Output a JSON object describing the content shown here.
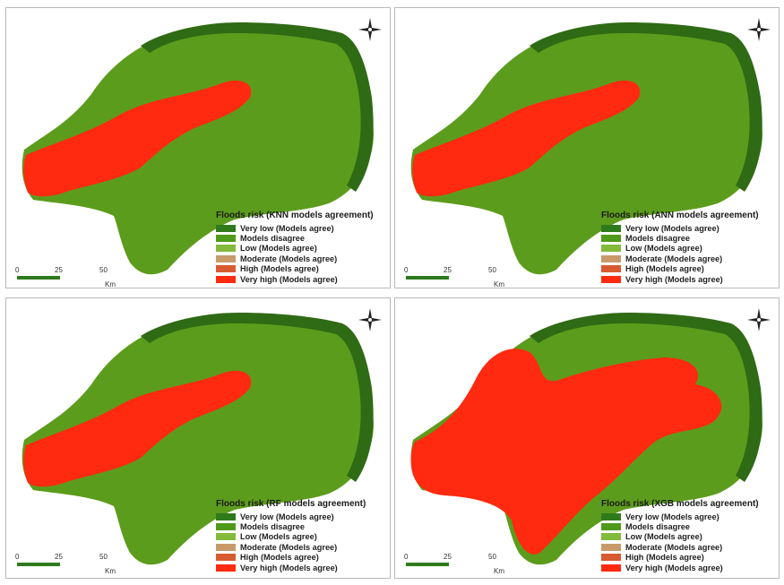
{
  "colors": {
    "very_low": "#2f7a1b",
    "models_disagree": "#4f9a1a",
    "low": "#83ba3b",
    "moderate": "#c89a6a",
    "high": "#d85a30",
    "very_high": "#ff2a0f",
    "basin": "#5c9c1c",
    "border": "#2f6a14"
  },
  "panels": [
    {
      "legend_title_prefix": "Floods risk (",
      "legend_title_model": "KNN",
      "legend_title_suffix": " models agreement)",
      "legend": [
        {
          "label": "Very low (Models agree)",
          "color": "#2f7a1b"
        },
        {
          "label": "Models disagree",
          "color": "#4f9a1a"
        },
        {
          "label": "Low (Models agree)",
          "color": "#83ba3b"
        },
        {
          "label": "Moderate (Models agree)",
          "color": "#c89a6a"
        },
        {
          "label": "High (Models agree)",
          "color": "#d85a30"
        },
        {
          "label": "Very high (Models agree)",
          "color": "#ff2a0f"
        }
      ],
      "risk_extent": "medium",
      "scale": {
        "t0": "0",
        "t1": "25",
        "t2": "50",
        "unit": "Km"
      }
    },
    {
      "legend_title_prefix": "Floods risk (",
      "legend_title_model": "ANN",
      "legend_title_suffix": " models agreement)",
      "legend": [
        {
          "label": "Very low (Models agree)",
          "color": "#2f7a1b"
        },
        {
          "label": "Models disagree",
          "color": "#4f9a1a"
        },
        {
          "label": "Low (Models agree)",
          "color": "#83ba3b"
        },
        {
          "label": "Moderate (Models agree)",
          "color": "#c89a6a"
        },
        {
          "label": "High (Models agree)",
          "color": "#d85a30"
        },
        {
          "label": "Very high (Models agree)",
          "color": "#ff2a0f"
        }
      ],
      "risk_extent": "medium",
      "scale": {
        "t0": "0",
        "t1": "25",
        "t2": "50",
        "unit": "Km"
      }
    },
    {
      "legend_title_prefix": "Floods risk (",
      "legend_title_model": "RF",
      "legend_title_suffix": " models agreement)",
      "legend": [
        {
          "label": "Very low (Models agree)",
          "color": "#2f7a1b"
        },
        {
          "label": "Models disagree",
          "color": "#4f9a1a"
        },
        {
          "label": "Low (Models agree)",
          "color": "#83ba3b"
        },
        {
          "label": "Moderate (Models agree)",
          "color": "#c89a6a"
        },
        {
          "label": "High (Models agree)",
          "color": "#d85a30"
        },
        {
          "label": "Very high (Models agree)",
          "color": "#ff2a0f"
        }
      ],
      "risk_extent": "medium",
      "scale": {
        "t0": "0",
        "t1": "25",
        "t2": "50",
        "unit": "Km"
      }
    },
    {
      "legend_title_prefix": "Floods risk (",
      "legend_title_model": "XGB",
      "legend_title_suffix": " models agreement)",
      "legend": [
        {
          "label": "Very low (Models agree)",
          "color": "#2f7a1b"
        },
        {
          "label": "Models disagree",
          "color": "#4f9a1a"
        },
        {
          "label": "Low (Models agree)",
          "color": "#83ba3b"
        },
        {
          "label": "Moderate (Models agree)",
          "color": "#c89a6a"
        },
        {
          "label": "High (Models agree)",
          "color": "#d85a30"
        },
        {
          "label": "Very high (Models agree)",
          "color": "#ff2a0f"
        }
      ],
      "risk_extent": "large",
      "scale": {
        "t0": "0",
        "t1": "25",
        "t2": "50",
        "unit": "Km"
      }
    }
  ]
}
